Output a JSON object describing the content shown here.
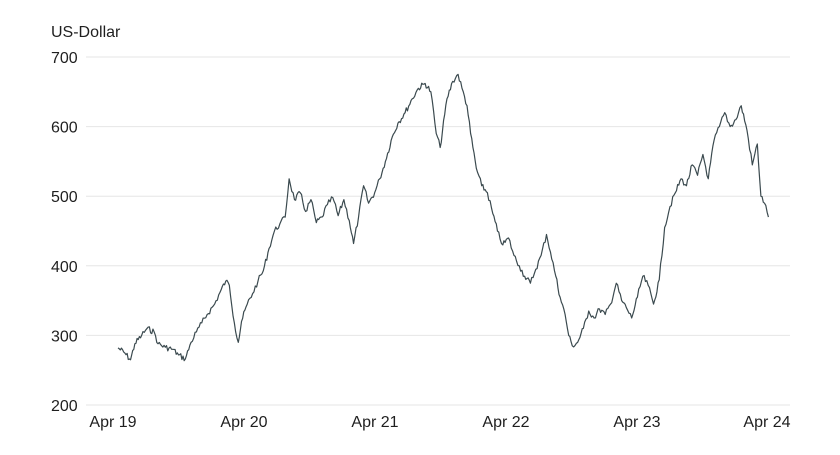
{
  "chart_data": {
    "type": "line",
    "ylabel": "US-Dollar",
    "ylim": [
      200,
      700
    ],
    "yticks": [
      200,
      300,
      400,
      500,
      600,
      700
    ],
    "x_tick_labels": [
      "Apr 19",
      "Apr 20",
      "Apr 21",
      "Apr 22",
      "Apr 23",
      "Apr 24"
    ],
    "grid": true,
    "line_color": "#3b4a4f",
    "series": [
      {
        "points": [
          [
            "2019-04-15",
            282
          ],
          [
            "2019-05-01",
            276
          ],
          [
            "2019-05-20",
            265
          ],
          [
            "2019-06-01",
            288
          ],
          [
            "2019-06-20",
            300
          ],
          [
            "2019-07-05",
            310
          ],
          [
            "2019-07-25",
            305
          ],
          [
            "2019-08-05",
            288
          ],
          [
            "2019-08-25",
            283
          ],
          [
            "2019-09-15",
            280
          ],
          [
            "2019-10-01",
            272
          ],
          [
            "2019-10-20",
            266
          ],
          [
            "2019-11-05",
            290
          ],
          [
            "2019-11-20",
            305
          ],
          [
            "2019-12-05",
            318
          ],
          [
            "2019-12-20",
            330
          ],
          [
            "2020-01-10",
            345
          ],
          [
            "2020-01-25",
            362
          ],
          [
            "2020-02-10",
            378
          ],
          [
            "2020-02-20",
            372
          ],
          [
            "2020-03-05",
            318
          ],
          [
            "2020-03-16",
            290
          ],
          [
            "2020-03-25",
            320
          ],
          [
            "2020-04-10",
            345
          ],
          [
            "2020-04-25",
            360
          ],
          [
            "2020-05-10",
            378
          ],
          [
            "2020-05-25",
            393
          ],
          [
            "2020-06-10",
            425
          ],
          [
            "2020-06-25",
            450
          ],
          [
            "2020-07-10",
            460
          ],
          [
            "2020-07-25",
            470
          ],
          [
            "2020-08-05",
            525
          ],
          [
            "2020-08-20",
            495
          ],
          [
            "2020-09-05",
            505
          ],
          [
            "2020-09-20",
            478
          ],
          [
            "2020-10-05",
            495
          ],
          [
            "2020-10-20",
            462
          ],
          [
            "2020-11-05",
            470
          ],
          [
            "2020-11-20",
            488
          ],
          [
            "2020-12-05",
            498
          ],
          [
            "2020-12-20",
            472
          ],
          [
            "2021-01-05",
            495
          ],
          [
            "2021-01-20",
            465
          ],
          [
            "2021-02-01",
            432
          ],
          [
            "2021-02-15",
            470
          ],
          [
            "2021-03-01",
            515
          ],
          [
            "2021-03-15",
            490
          ],
          [
            "2021-04-01",
            505
          ],
          [
            "2021-04-15",
            525
          ],
          [
            "2021-05-01",
            550
          ],
          [
            "2021-05-20",
            585
          ],
          [
            "2021-06-05",
            605
          ],
          [
            "2021-06-25",
            620
          ],
          [
            "2021-07-15",
            640
          ],
          [
            "2021-08-01",
            655
          ],
          [
            "2021-08-20",
            662
          ],
          [
            "2021-09-05",
            650
          ],
          [
            "2021-09-20",
            590
          ],
          [
            "2021-10-01",
            570
          ],
          [
            "2021-10-20",
            640
          ],
          [
            "2021-11-05",
            665
          ],
          [
            "2021-11-20",
            675
          ],
          [
            "2021-12-01",
            655
          ],
          [
            "2021-12-15",
            630
          ],
          [
            "2021-12-25",
            590
          ],
          [
            "2022-01-10",
            540
          ],
          [
            "2022-01-25",
            515
          ],
          [
            "2022-02-10",
            505
          ],
          [
            "2022-02-25",
            475
          ],
          [
            "2022-03-10",
            450
          ],
          [
            "2022-03-25",
            430
          ],
          [
            "2022-04-10",
            440
          ],
          [
            "2022-04-25",
            415
          ],
          [
            "2022-05-10",
            400
          ],
          [
            "2022-05-25",
            385
          ],
          [
            "2022-06-10",
            375
          ],
          [
            "2022-06-25",
            395
          ],
          [
            "2022-07-10",
            415
          ],
          [
            "2022-07-25",
            445
          ],
          [
            "2022-08-05",
            420
          ],
          [
            "2022-08-20",
            385
          ],
          [
            "2022-09-01",
            355
          ],
          [
            "2022-09-15",
            330
          ],
          [
            "2022-09-25",
            300
          ],
          [
            "2022-10-05",
            285
          ],
          [
            "2022-10-20",
            290
          ],
          [
            "2022-11-05",
            310
          ],
          [
            "2022-11-20",
            335
          ],
          [
            "2022-12-05",
            325
          ],
          [
            "2022-12-20",
            338
          ],
          [
            "2023-01-05",
            330
          ],
          [
            "2023-01-20",
            345
          ],
          [
            "2023-02-05",
            375
          ],
          [
            "2023-02-20",
            350
          ],
          [
            "2023-03-05",
            340
          ],
          [
            "2023-03-20",
            325
          ],
          [
            "2023-04-05",
            355
          ],
          [
            "2023-04-20",
            385
          ],
          [
            "2023-05-05",
            372
          ],
          [
            "2023-05-20",
            345
          ],
          [
            "2023-06-05",
            380
          ],
          [
            "2023-06-20",
            455
          ],
          [
            "2023-07-05",
            485
          ],
          [
            "2023-07-20",
            505
          ],
          [
            "2023-08-05",
            525
          ],
          [
            "2023-08-20",
            515
          ],
          [
            "2023-09-05",
            545
          ],
          [
            "2023-09-20",
            530
          ],
          [
            "2023-10-05",
            560
          ],
          [
            "2023-10-20",
            525
          ],
          [
            "2023-11-05",
            580
          ],
          [
            "2023-11-20",
            600
          ],
          [
            "2023-12-05",
            620
          ],
          [
            "2023-12-20",
            600
          ],
          [
            "2024-01-05",
            610
          ],
          [
            "2024-01-20",
            630
          ],
          [
            "2024-02-05",
            595
          ],
          [
            "2024-02-20",
            545
          ],
          [
            "2024-03-05",
            575
          ],
          [
            "2024-03-15",
            500
          ],
          [
            "2024-03-25",
            490
          ],
          [
            "2024-04-05",
            470
          ]
        ]
      }
    ]
  }
}
